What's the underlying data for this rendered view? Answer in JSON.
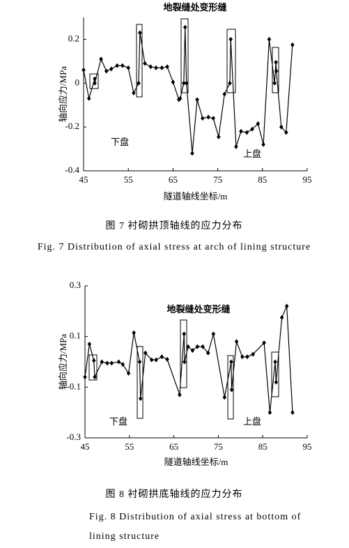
{
  "chart_data": [
    {
      "type": "line",
      "title": "地裂缝处变形缝",
      "x_label": "隧道轴线坐标/m",
      "y_label": "轴向应力/MPa",
      "annotations": [
        "下盘",
        "上盘"
      ],
      "caption": "图 7   衬砌拱顶轴线的应力分布",
      "caption_en": [
        "Fig. 7   Distribution of axial stress at arch of lining structure"
      ],
      "xlim": [
        45,
        95
      ],
      "xticks": [
        45,
        55,
        65,
        75,
        85,
        95
      ],
      "ylim": [
        -0.4,
        0.3
      ],
      "yticks": [
        0.2,
        0,
        -0.2,
        -0.4
      ],
      "color": "#000000",
      "x": [
        45,
        46.2,
        47.5,
        47.5,
        48.9,
        50.1,
        51.2,
        52.5,
        53.7,
        55,
        56.2,
        57.3,
        57.6,
        58.7,
        60,
        61.2,
        62.5,
        63.7,
        65,
        66.3,
        66.6,
        67.4,
        67.7,
        68,
        69.3,
        70.4,
        71.6,
        72.9,
        74,
        75.2,
        76.5,
        77.7,
        77.9,
        79.1,
        80.2,
        81.5,
        82.7,
        84,
        85.2,
        86.5,
        87.7,
        88,
        88.1,
        89.2,
        90.3,
        91.7
      ],
      "values": [
        0.06,
        -0.07,
        0.02,
        0.0,
        0.11,
        0.055,
        0.065,
        0.08,
        0.08,
        0.07,
        -0.045,
        0.0,
        0.23,
        0.09,
        0.075,
        0.07,
        0.07,
        0.075,
        0.005,
        -0.075,
        -0.07,
        0.0,
        0.255,
        0.0,
        -0.32,
        -0.075,
        -0.16,
        -0.155,
        -0.16,
        -0.245,
        -0.05,
        0.0,
        0.2,
        -0.29,
        -0.22,
        -0.225,
        -0.21,
        -0.185,
        -0.28,
        0.2,
        0.0,
        0.095,
        0.055,
        -0.2,
        -0.225,
        0.175
      ]
    },
    {
      "type": "line",
      "title": "地裂缝处变形缝",
      "x_label": "隧道轴线坐标/m",
      "y_label": "轴向应力/MPa",
      "annotations": [
        "下盘",
        "上盘"
      ],
      "caption": "图 8   衬砌拱底轴线的应力分布",
      "caption_en": [
        "Fig. 8   Distribution of axial stress at bottom of",
        "lining structure"
      ],
      "xlim": [
        45,
        95
      ],
      "xticks": [
        45,
        55,
        65,
        75,
        85,
        95
      ],
      "ylim": [
        -0.3,
        0.3
      ],
      "yticks": [
        0.3,
        0.1,
        -0.1,
        -0.3
      ],
      "color": "#000000",
      "x": [
        45,
        46,
        47,
        47.2,
        48.8,
        50,
        51,
        52.6,
        53.5,
        54.8,
        56,
        57.3,
        57.5,
        58.6,
        60,
        61,
        62.3,
        63.5,
        66.3,
        67.3,
        67.4,
        68.2,
        69.2,
        70.3,
        71.5,
        72.7,
        73.9,
        76.4,
        77.9,
        78,
        79.1,
        80.4,
        81.5,
        82.8,
        85.3,
        86.6,
        87.8,
        88,
        89.3,
        90.4,
        91.7
      ],
      "values": [
        -0.06,
        0.07,
        0.005,
        -0.06,
        0.0,
        -0.005,
        -0.005,
        0.0,
        -0.01,
        -0.045,
        0.115,
        0.0,
        -0.145,
        0.035,
        0.008,
        0.008,
        0.02,
        0.01,
        -0.13,
        0.11,
        0.0,
        0.06,
        0.045,
        0.06,
        0.06,
        0.035,
        0.11,
        -0.14,
        0.0,
        -0.11,
        0.08,
        0.02,
        0.02,
        0.03,
        0.075,
        -0.2,
        0.0,
        -0.08,
        0.175,
        0.22,
        -0.2
      ]
    }
  ]
}
